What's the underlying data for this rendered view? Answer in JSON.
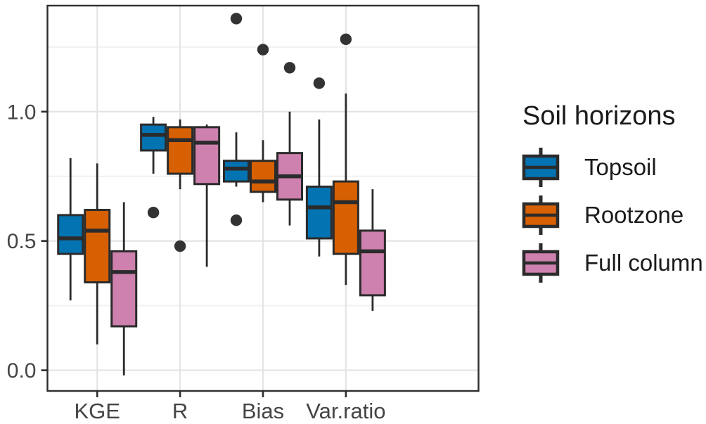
{
  "chart_data": {
    "type": "boxplot",
    "title": "",
    "xlabel": "",
    "ylabel": "",
    "categories": [
      "KGE",
      "R",
      "Bias",
      "Var.ratio"
    ],
    "y_axis": {
      "ticks": [
        {
          "value": 0.0,
          "label": "0.0"
        },
        {
          "value": 0.5,
          "label": "0.5"
        },
        {
          "value": 1.0,
          "label": "1.0"
        }
      ],
      "minor_gridlines": [
        0.25,
        0.75,
        1.25
      ],
      "range": [
        -0.08,
        1.41
      ]
    },
    "grid": "major-and-minor-horizontal, major-vertical-at-categories",
    "legend": {
      "title": "Soil horizons",
      "position": "right",
      "entries": [
        {
          "label": "Topsoil",
          "color": "#0473B1"
        },
        {
          "label": "Rootzone",
          "color": "#D66002"
        },
        {
          "label": "Full column",
          "color": "#CE80AE"
        }
      ]
    },
    "style_colors": {
      "box_outline": "#2b2b2b",
      "outlier_dot": "#333333",
      "panel_border": "#2e2e2e",
      "major_gridline": "#e4e4e4",
      "minor_gridline": "#f1f1f1",
      "axis_text": "#454545"
    },
    "series": [
      {
        "name": "Topsoil",
        "color": "#0473B1",
        "boxes": [
          {
            "category": "KGE",
            "low": 0.27,
            "q1": 0.45,
            "median": 0.51,
            "q3": 0.6,
            "high": 0.82,
            "outliers": []
          },
          {
            "category": "R",
            "low": 0.76,
            "q1": 0.85,
            "median": 0.91,
            "q3": 0.95,
            "high": 0.98,
            "outliers": [
              0.61
            ]
          },
          {
            "category": "Bias",
            "low": 0.71,
            "q1": 0.73,
            "median": 0.78,
            "q3": 0.81,
            "high": 0.92,
            "outliers": [
              1.36,
              0.58
            ]
          },
          {
            "category": "Var.ratio",
            "low": 0.44,
            "q1": 0.51,
            "median": 0.63,
            "q3": 0.71,
            "high": 0.97,
            "outliers": [
              1.11
            ]
          }
        ]
      },
      {
        "name": "Rootzone",
        "color": "#D66002",
        "boxes": [
          {
            "category": "KGE",
            "low": 0.1,
            "q1": 0.34,
            "median": 0.54,
            "q3": 0.62,
            "high": 0.8,
            "outliers": []
          },
          {
            "category": "R",
            "low": 0.7,
            "q1": 0.76,
            "median": 0.89,
            "q3": 0.94,
            "high": 0.97,
            "outliers": [
              0.48
            ]
          },
          {
            "category": "Bias",
            "low": 0.65,
            "q1": 0.69,
            "median": 0.73,
            "q3": 0.81,
            "high": 0.89,
            "outliers": [
              1.24
            ]
          },
          {
            "category": "Var.ratio",
            "low": 0.33,
            "q1": 0.45,
            "median": 0.65,
            "q3": 0.73,
            "high": 1.07,
            "outliers": [
              1.28
            ]
          }
        ]
      },
      {
        "name": "Full column",
        "color": "#CE80AE",
        "boxes": [
          {
            "category": "KGE",
            "low": -0.02,
            "q1": 0.17,
            "median": 0.38,
            "q3": 0.46,
            "high": 0.65,
            "outliers": []
          },
          {
            "category": "R",
            "low": 0.4,
            "q1": 0.72,
            "median": 0.88,
            "q3": 0.94,
            "high": 0.95,
            "outliers": []
          },
          {
            "category": "Bias",
            "low": 0.56,
            "q1": 0.66,
            "median": 0.75,
            "q3": 0.84,
            "high": 1.0,
            "outliers": [
              1.17
            ]
          },
          {
            "category": "Var.ratio",
            "low": 0.23,
            "q1": 0.29,
            "median": 0.46,
            "q3": 0.54,
            "high": 0.7,
            "outliers": []
          }
        ]
      }
    ]
  }
}
